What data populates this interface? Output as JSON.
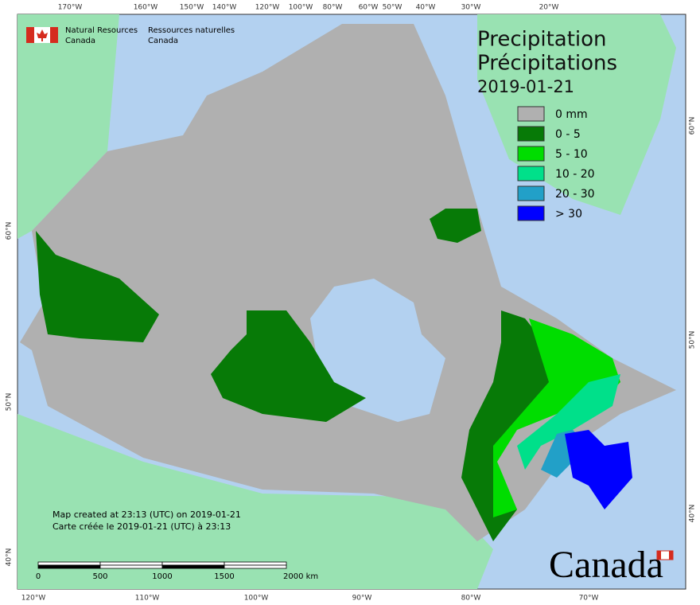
{
  "header": {
    "org_en": [
      "Natural Resources",
      "Canada"
    ],
    "org_fr": [
      "Ressources naturelles",
      "Canada"
    ]
  },
  "title": {
    "en": "Precipitation",
    "fr": "Précipitations",
    "date": "2019-01-21"
  },
  "legend": [
    {
      "label": "0 mm",
      "color": "#b0b0b0"
    },
    {
      "label": "0 - 5",
      "color": "#077a07"
    },
    {
      "label": "5 - 10",
      "color": "#00dd00"
    },
    {
      "label": "10 - 20",
      "color": "#00e08a"
    },
    {
      "label": "20 - 30",
      "color": "#22a0c8"
    },
    {
      "label": "> 30",
      "color": "#0000ff"
    }
  ],
  "graticule": {
    "top": [
      "170°W",
      "160°W",
      "150°W",
      "140°W",
      "120°W",
      "100°W",
      "80°W",
      "60°W",
      "50°W",
      "40°W",
      "30°W",
      "20°W"
    ],
    "bottom": [
      "120°W",
      "110°W",
      "100°W",
      "90°W",
      "80°W",
      "70°W"
    ],
    "left": [
      "60°N",
      "50°N",
      "40°N"
    ],
    "right": [
      "60°N",
      "50°N",
      "40°N"
    ]
  },
  "notes": [
    "Map created at 23:13 (UTC) on 2019-01-21",
    "Carte créée le 2019-01-21 (UTC) à 23:13"
  ],
  "scale_bar": {
    "labels": [
      "0",
      "500",
      "1000",
      "1500",
      "2000 km"
    ]
  },
  "wordmark": "Canada"
}
